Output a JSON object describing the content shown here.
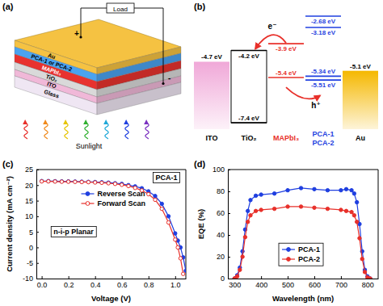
{
  "chart_data": [
    {
      "type": "line",
      "x_label": "Voltage (V)",
      "y_label": "Current density (mA cm⁻²)",
      "annotations": [
        "(c)",
        "PCA-1",
        "n-i-p Planar"
      ],
      "xlim": [
        -0.04,
        1.08
      ],
      "xticks": [
        {
          "value": 0,
          "label": "0.0"
        },
        0.2,
        0.4,
        0.6,
        0.8,
        {
          "value": 1,
          "label": "1.0"
        }
      ],
      "ylim": [
        -10,
        25
      ],
      "yticks": [
        -10,
        -5,
        0,
        5,
        10,
        15,
        20,
        25
      ],
      "legend": "upper-center",
      "series": [
        {
          "name": "Reverse Scan",
          "color": "#1f3fe0",
          "marker": "filled-circle",
          "x": [
            0,
            0.05,
            0.1,
            0.15,
            0.2,
            0.25,
            0.3,
            0.35,
            0.4,
            0.45,
            0.5,
            0.55,
            0.6,
            0.65,
            0.7,
            0.75,
            0.8,
            0.85,
            0.9,
            0.95,
            1.0,
            1.02,
            1.04,
            1.06,
            1.08
          ],
          "values": [
            21.3,
            21.3,
            21.25,
            21.2,
            21.2,
            21.15,
            21.1,
            21.05,
            21.0,
            20.9,
            20.8,
            20.6,
            20.4,
            20.0,
            19.6,
            19.0,
            18.0,
            16.5,
            14.0,
            10.0,
            4.5,
            2.2,
            0,
            -3.2,
            -7.5
          ]
        },
        {
          "name": "Forward Scan",
          "color": "#e8302a",
          "marker": "open-circle",
          "x": [
            0,
            0.05,
            0.1,
            0.15,
            0.2,
            0.25,
            0.3,
            0.35,
            0.4,
            0.45,
            0.5,
            0.55,
            0.6,
            0.65,
            0.7,
            0.75,
            0.8,
            0.85,
            0.9,
            0.95,
            1.0,
            1.02,
            1.04,
            1.06
          ],
          "values": [
            21.2,
            21.2,
            21.15,
            21.1,
            21.1,
            21.05,
            21.0,
            20.95,
            20.85,
            20.75,
            20.6,
            20.4,
            20.1,
            19.7,
            19.1,
            18.3,
            17.1,
            15.3,
            12.4,
            8.0,
            2.5,
            0,
            -3.5,
            -8.5
          ]
        }
      ]
    },
    {
      "type": "line",
      "x_label": "Wavelength (nm)",
      "y_label": "EQE (%)",
      "annotations": [
        "(d)"
      ],
      "xlim": [
        275,
        840
      ],
      "xticks": [
        300,
        400,
        500,
        600,
        700,
        800
      ],
      "ylim": [
        0,
        100
      ],
      "yticks": [
        0,
        20,
        40,
        60,
        80,
        100
      ],
      "legend": "lower-center",
      "series": [
        {
          "name": "PCA-1",
          "color": "#1f3fe0",
          "marker": "filled-circle",
          "x": [
            300,
            310,
            320,
            330,
            340,
            350,
            360,
            380,
            400,
            450,
            500,
            550,
            600,
            650,
            700,
            720,
            740,
            750,
            760,
            770,
            780,
            790,
            800,
            810
          ],
          "values": [
            0,
            3,
            10,
            25,
            45,
            62,
            72,
            76,
            77,
            78,
            81,
            83,
            82,
            81,
            81,
            82,
            81,
            78,
            70,
            50,
            25,
            8,
            2,
            0
          ]
        },
        {
          "name": "PCA-2",
          "color": "#e8302a",
          "marker": "filled-circle",
          "x": [
            300,
            310,
            320,
            330,
            340,
            350,
            360,
            380,
            400,
            450,
            500,
            550,
            600,
            650,
            700,
            720,
            740,
            750,
            760,
            770,
            780,
            790,
            800,
            810
          ],
          "values": [
            0,
            2,
            8,
            20,
            38,
            52,
            58,
            62,
            63,
            64,
            66,
            66,
            65,
            64,
            63,
            62,
            61,
            58,
            52,
            37,
            18,
            6,
            1,
            0
          ]
        }
      ]
    }
  ],
  "schematic": {
    "label": "(a)",
    "load": "Load",
    "plus": "+",
    "minus": "-",
    "light": "Sunlight",
    "layers": [
      {
        "name": "Au",
        "color": "#f5c242"
      },
      {
        "name": "PCA-1 or PCA-2",
        "color": "#4aa3f0"
      },
      {
        "name": "MAPbI₃",
        "color": "#e8322f"
      },
      {
        "name": "TiO₂",
        "color": "#d9d9d9"
      },
      {
        "name": "ITO",
        "color": "#f0b8d8"
      },
      {
        "name": "Glass",
        "color": "#efe6f3"
      }
    ]
  },
  "energy_diagram": {
    "label": "(b)",
    "carriers": [
      "e⁻",
      "h⁺"
    ],
    "materials": [
      {
        "names": [
          "ITO"
        ],
        "color": "#f0a8d8",
        "levels": [
          {
            "value": -4.7,
            "label": "-4.7 eV"
          }
        ]
      },
      {
        "names": [
          "TiO₂"
        ],
        "color": "#000000",
        "levels": [
          {
            "value": -4.2,
            "label": "-4.2 eV"
          },
          {
            "value": -7.4,
            "label": "-7.4 eV"
          }
        ]
      },
      {
        "names": [
          "MAPbI₃"
        ],
        "color": "#e8302a",
        "levels": [
          {
            "value": -3.9,
            "label": "-3.9 eV"
          },
          {
            "value": -5.4,
            "label": "-5.4 eV"
          }
        ]
      },
      {
        "names": [
          "PCA-1",
          "PCA-2"
        ],
        "color": "#1f3fe0",
        "levels": [
          {
            "value": -2.68,
            "label": "-2.68 eV"
          },
          {
            "value": -3.18,
            "label": "-3.18 eV"
          },
          {
            "value": -5.34,
            "label": "-5.34 eV"
          },
          {
            "value": -5.51,
            "label": "-5.51 eV"
          }
        ]
      },
      {
        "names": [
          "Au"
        ],
        "color": "#f5b800",
        "levels": [
          {
            "value": -5.1,
            "label": "-5.1 eV"
          }
        ]
      }
    ]
  }
}
